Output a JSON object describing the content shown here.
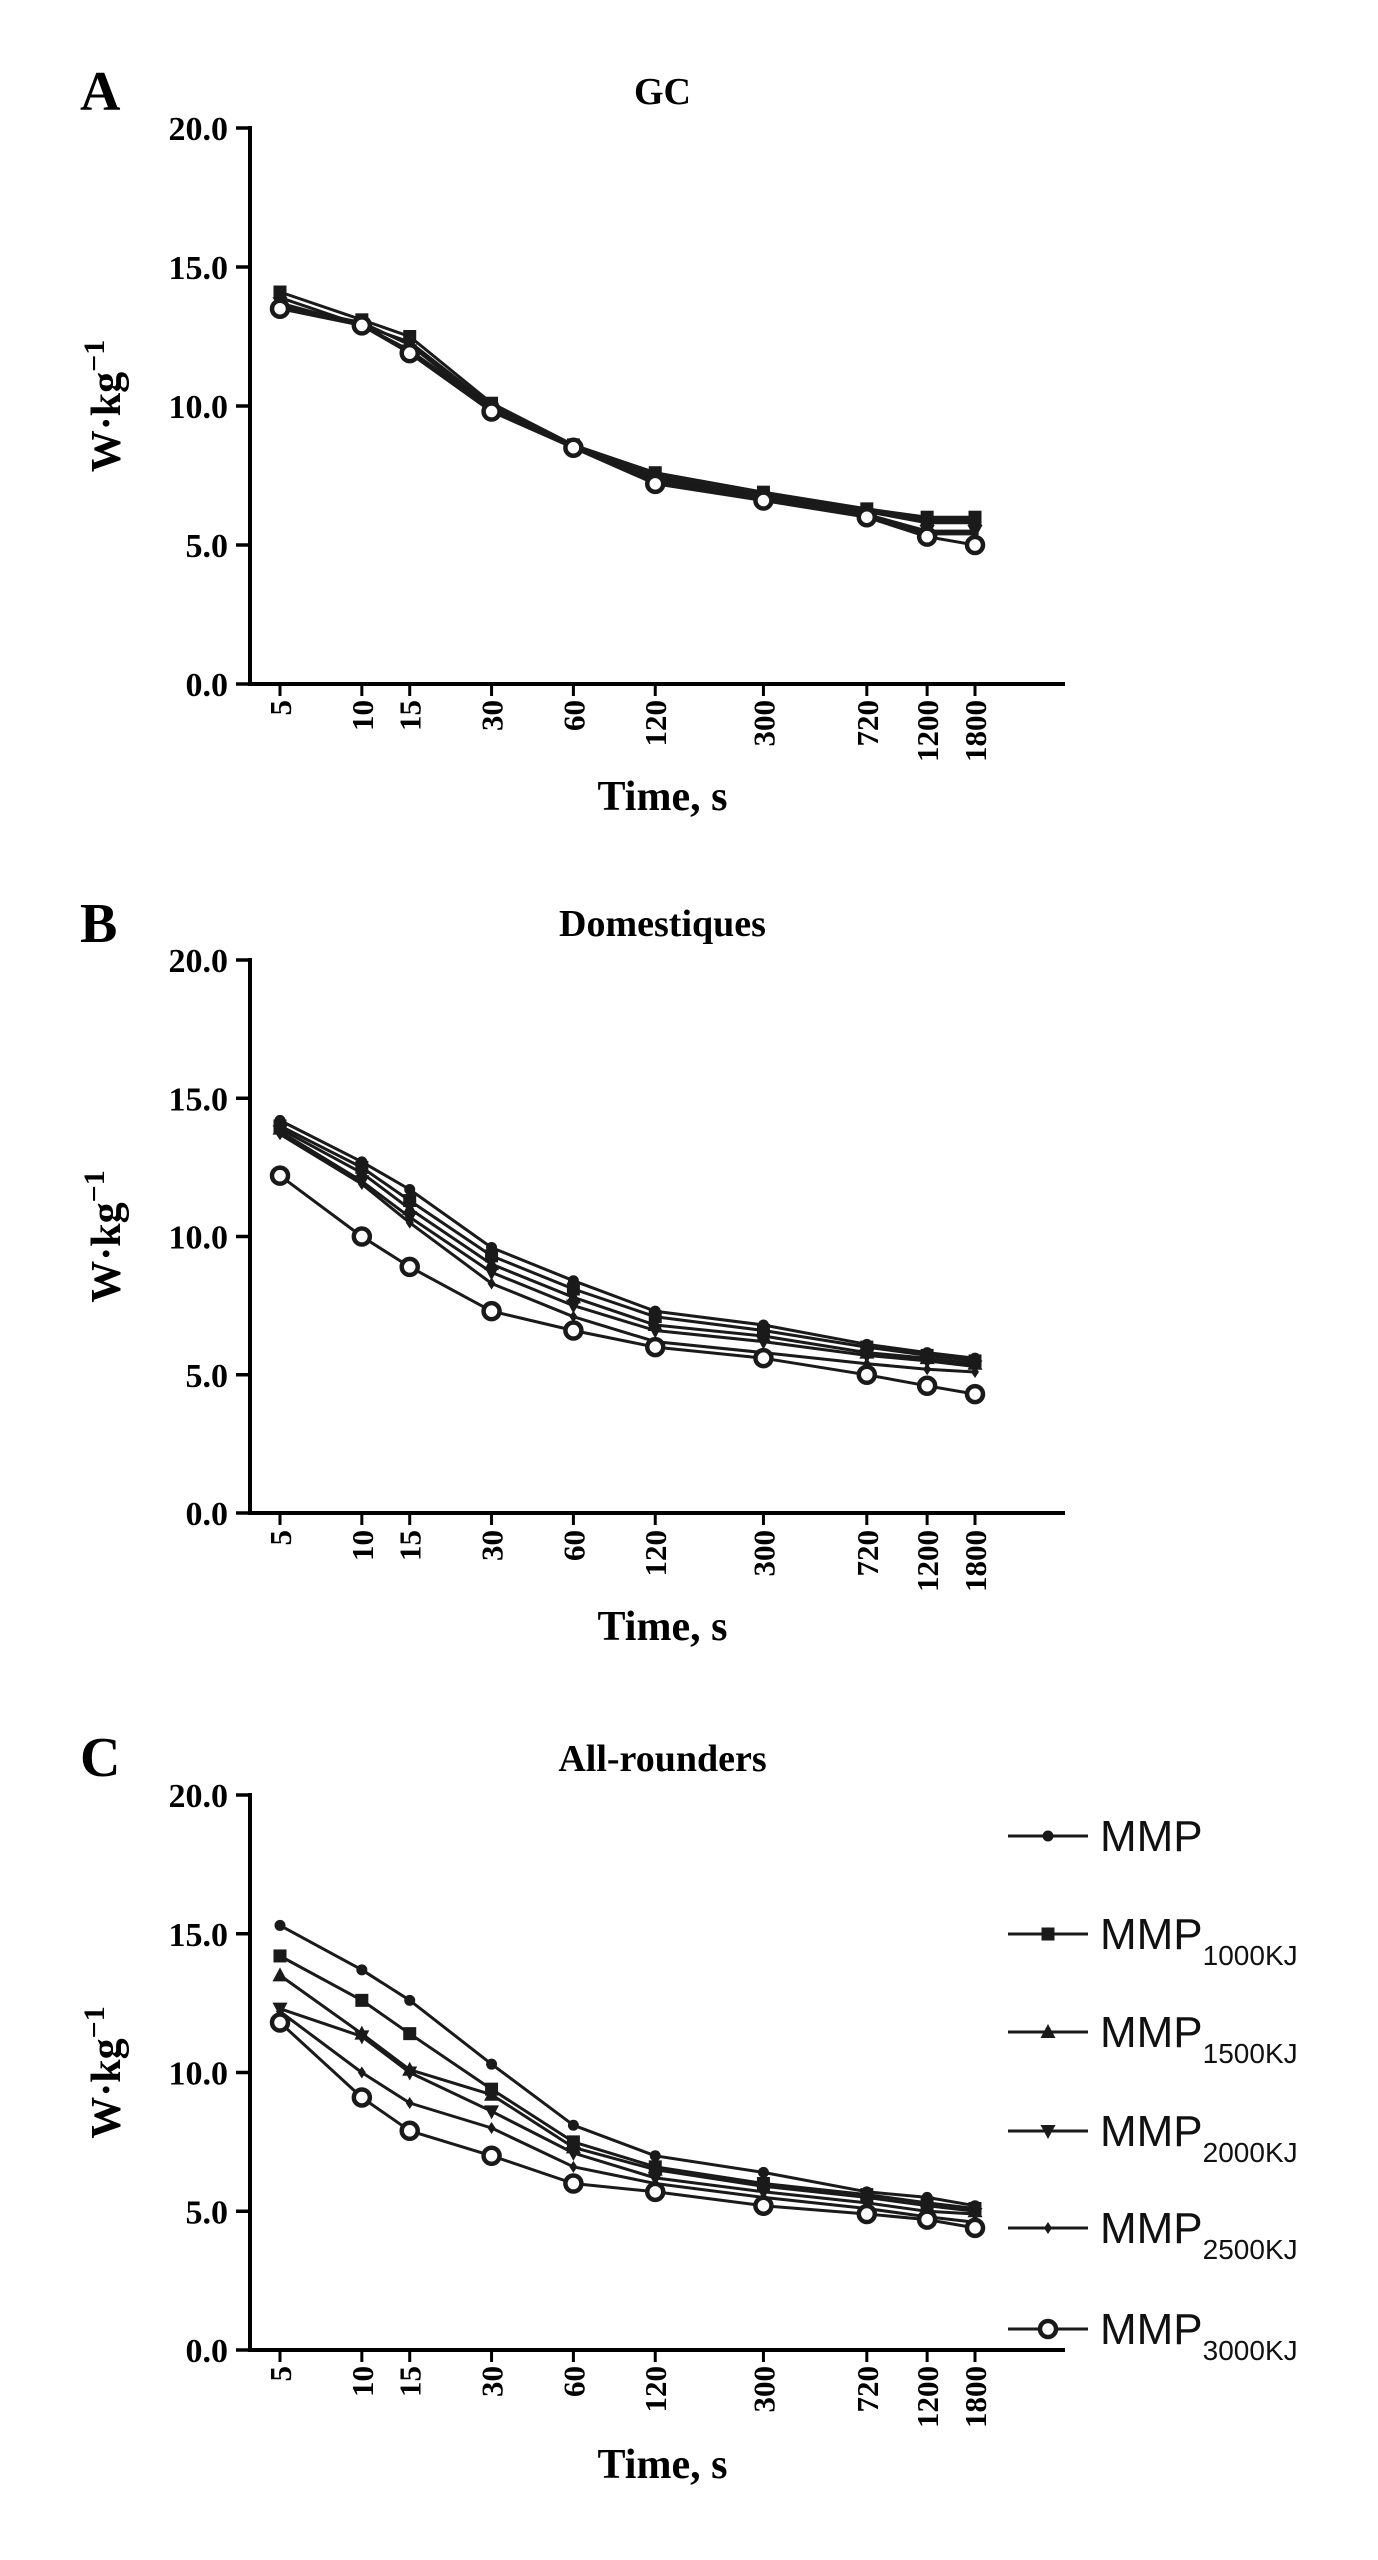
{
  "chart_data": [
    {
      "type": "line",
      "panel": "A",
      "title": "GC",
      "xlabel": "Time, s",
      "ylabel": "W·kg",
      "ylabel_sup": "−1",
      "xscale": "log",
      "categories": [
        "5",
        "10",
        "15",
        "30",
        "60",
        "120",
        "300",
        "720",
        "1200",
        "1800"
      ],
      "y_ticks": [
        "0.0",
        "5.0",
        "10.0",
        "15.0",
        "20.0"
      ],
      "ylim": [
        0,
        20
      ],
      "grid": false,
      "series": [
        {
          "name": "MMP",
          "values": [
            13.6,
            13.0,
            12.2,
            9.9,
            8.5,
            7.5,
            6.8,
            6.2,
            5.8,
            5.8
          ]
        },
        {
          "name": "MMP1000KJ",
          "values": [
            14.1,
            13.1,
            12.5,
            10.1,
            8.6,
            7.6,
            6.9,
            6.3,
            6.0,
            6.0
          ]
        },
        {
          "name": "MMP1500KJ",
          "values": [
            13.9,
            12.9,
            12.3,
            10.0,
            8.5,
            7.4,
            6.8,
            6.2,
            5.9,
            5.9
          ]
        },
        {
          "name": "MMP2000KJ",
          "values": [
            13.7,
            12.9,
            12.0,
            9.9,
            8.5,
            7.3,
            6.7,
            6.1,
            5.5,
            5.5
          ]
        },
        {
          "name": "MMP2500KJ",
          "values": [
            13.6,
            12.9,
            12.0,
            9.9,
            8.5,
            7.3,
            6.7,
            6.1,
            5.4,
            5.4
          ]
        },
        {
          "name": "MMP3000KJ",
          "values": [
            13.5,
            12.9,
            11.9,
            9.8,
            8.5,
            7.2,
            6.6,
            6.0,
            5.3,
            5.0
          ]
        }
      ]
    },
    {
      "type": "line",
      "panel": "B",
      "title": "Domestiques",
      "xlabel": "Time, s",
      "ylabel": "W·kg",
      "ylabel_sup": "−1",
      "xscale": "log",
      "categories": [
        "5",
        "10",
        "15",
        "30",
        "60",
        "120",
        "300",
        "720",
        "1200",
        "1800"
      ],
      "y_ticks": [
        "0.0",
        "5.0",
        "10.0",
        "15.0",
        "20.0"
      ],
      "ylim": [
        0,
        20
      ],
      "grid": false,
      "series": [
        {
          "name": "MMP",
          "values": [
            14.2,
            12.7,
            11.7,
            9.6,
            8.4,
            7.3,
            6.8,
            6.1,
            5.8,
            5.6
          ]
        },
        {
          "name": "MMP1000KJ",
          "values": [
            14.0,
            12.5,
            11.3,
            9.3,
            8.1,
            7.1,
            6.6,
            6.0,
            5.7,
            5.5
          ]
        },
        {
          "name": "MMP1500KJ",
          "values": [
            13.9,
            12.3,
            11.0,
            9.0,
            7.8,
            6.8,
            6.4,
            5.8,
            5.6,
            5.4
          ]
        },
        {
          "name": "MMP2000KJ",
          "values": [
            13.8,
            12.0,
            10.7,
            8.7,
            7.5,
            6.6,
            6.2,
            5.7,
            5.5,
            5.3
          ]
        },
        {
          "name": "MMP2500KJ",
          "values": [
            13.7,
            11.9,
            10.5,
            8.3,
            7.1,
            6.2,
            5.8,
            5.4,
            5.2,
            5.1
          ]
        },
        {
          "name": "MMP3000KJ",
          "values": [
            12.2,
            10.0,
            8.9,
            7.3,
            6.6,
            6.0,
            5.6,
            5.0,
            4.6,
            4.3
          ]
        }
      ]
    },
    {
      "type": "line",
      "panel": "C",
      "title": "All-rounders",
      "xlabel": "Time, s",
      "ylabel": "W·kg",
      "ylabel_sup": "−1",
      "xscale": "log",
      "categories": [
        "5",
        "10",
        "15",
        "30",
        "60",
        "120",
        "300",
        "720",
        "1200",
        "1800"
      ],
      "y_ticks": [
        "0.0",
        "5.0",
        "10.0",
        "15.0",
        "20.0"
      ],
      "ylim": [
        0,
        20
      ],
      "grid": false,
      "legend": "right",
      "series": [
        {
          "name": "MMP",
          "values": [
            15.3,
            13.7,
            12.6,
            10.3,
            8.1,
            7.0,
            6.4,
            5.7,
            5.5,
            5.2
          ]
        },
        {
          "name": "MMP1000KJ",
          "values": [
            14.2,
            12.6,
            11.4,
            9.4,
            7.5,
            6.6,
            6.0,
            5.6,
            5.3,
            5.1
          ]
        },
        {
          "name": "MMP1500KJ",
          "values": [
            13.5,
            11.4,
            10.1,
            9.2,
            7.3,
            6.5,
            5.9,
            5.5,
            5.2,
            5.0
          ]
        },
        {
          "name": "MMP2000KJ",
          "values": [
            12.3,
            11.3,
            10.0,
            8.6,
            7.1,
            6.2,
            5.7,
            5.3,
            5.0,
            4.9
          ]
        },
        {
          "name": "MMP2500KJ",
          "values": [
            12.2,
            10.0,
            8.9,
            8.0,
            6.6,
            6.0,
            5.5,
            5.1,
            4.8,
            4.6
          ]
        },
        {
          "name": "MMP3000KJ",
          "values": [
            11.8,
            9.1,
            7.9,
            7.0,
            6.0,
            5.7,
            5.2,
            4.9,
            4.7,
            4.4
          ]
        }
      ]
    }
  ],
  "legend": {
    "entries": [
      {
        "label": "MMP",
        "sub": "",
        "marker": "dot"
      },
      {
        "label": "MMP",
        "sub": "1000KJ",
        "marker": "square"
      },
      {
        "label": "MMP",
        "sub": "1500KJ",
        "marker": "triangle-up"
      },
      {
        "label": "MMP",
        "sub": "2000KJ",
        "marker": "triangle-down"
      },
      {
        "label": "MMP",
        "sub": "2500KJ",
        "marker": "diamond"
      },
      {
        "label": "MMP",
        "sub": "3000KJ",
        "marker": "open-circle"
      }
    ]
  },
  "colors": {
    "line": "#1a1a1a",
    "axis": "#000000",
    "background": "#ffffff"
  }
}
